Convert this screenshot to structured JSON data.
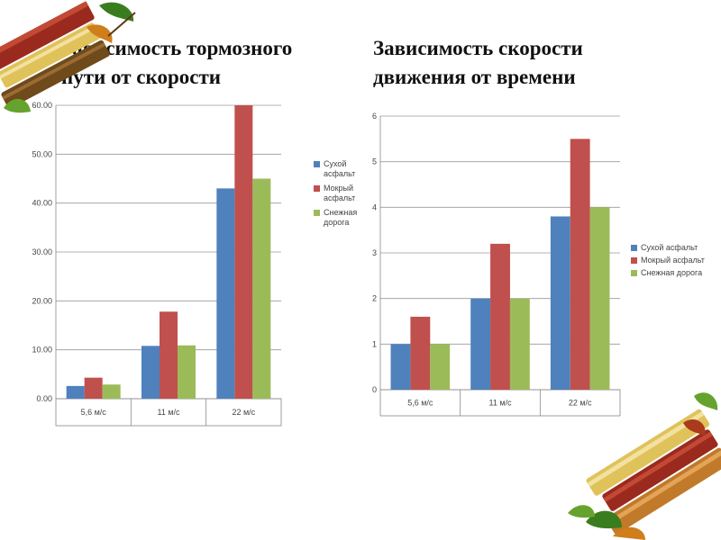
{
  "slide": {
    "title_left": "Зависимость тормозного\nпути от скорости",
    "title_right": "Зависимость скорости\nдвижения от времени"
  },
  "chart_data": [
    {
      "type": "bar",
      "title": "",
      "categories": [
        "5,6 м/с",
        "11 м/с",
        "22 м/с"
      ],
      "series": [
        {
          "name": "Сухой асфальт",
          "values": [
            2.6,
            10.8,
            43
          ],
          "color": "#4f81bd"
        },
        {
          "name": "Мокрый асфальт",
          "values": [
            4.3,
            17.8,
            60
          ],
          "color": "#c0504d"
        },
        {
          "name": "Снежная дорога",
          "values": [
            2.9,
            10.9,
            45
          ],
          "color": "#9bbb59"
        }
      ],
      "yticks": [
        "0.00",
        "10.00",
        "20.00",
        "30.00",
        "40.00",
        "50.00",
        "60.00"
      ],
      "legend_lines": [
        [
          "Сухой",
          "асфальт"
        ],
        [
          "Мокрый",
          "асфальт"
        ],
        [
          "Снежная",
          "дорога"
        ]
      ],
      "ylim": [
        0,
        60
      ],
      "grid": true,
      "legend_position": "right"
    },
    {
      "type": "bar",
      "title": "",
      "categories": [
        "5,6 м/с",
        "11 м/с",
        "22 м/с"
      ],
      "series": [
        {
          "name": "Сухой асфальт",
          "values": [
            1,
            2,
            3.8
          ],
          "color": "#4f81bd"
        },
        {
          "name": "Мокрый асфальт",
          "values": [
            1.6,
            3.2,
            5.5
          ],
          "color": "#c0504d"
        },
        {
          "name": "Снежная дорога",
          "values": [
            1,
            2,
            4
          ],
          "color": "#9bbb59"
        }
      ],
      "yticks": [
        "0",
        "1",
        "2",
        "3",
        "4",
        "5",
        "6"
      ],
      "ylim": [
        0,
        6
      ],
      "grid": true,
      "legend_position": "right"
    }
  ],
  "decor": {
    "icon": "stacked-books-autumn-leaves-icon",
    "book_colors": [
      "#e0c25a",
      "#9b2a1e",
      "#6f4a1b",
      "#c07a2a"
    ],
    "leaf_colors": [
      "#3a7d1f",
      "#66a32e",
      "#d07d1c",
      "#a93a1c"
    ]
  }
}
